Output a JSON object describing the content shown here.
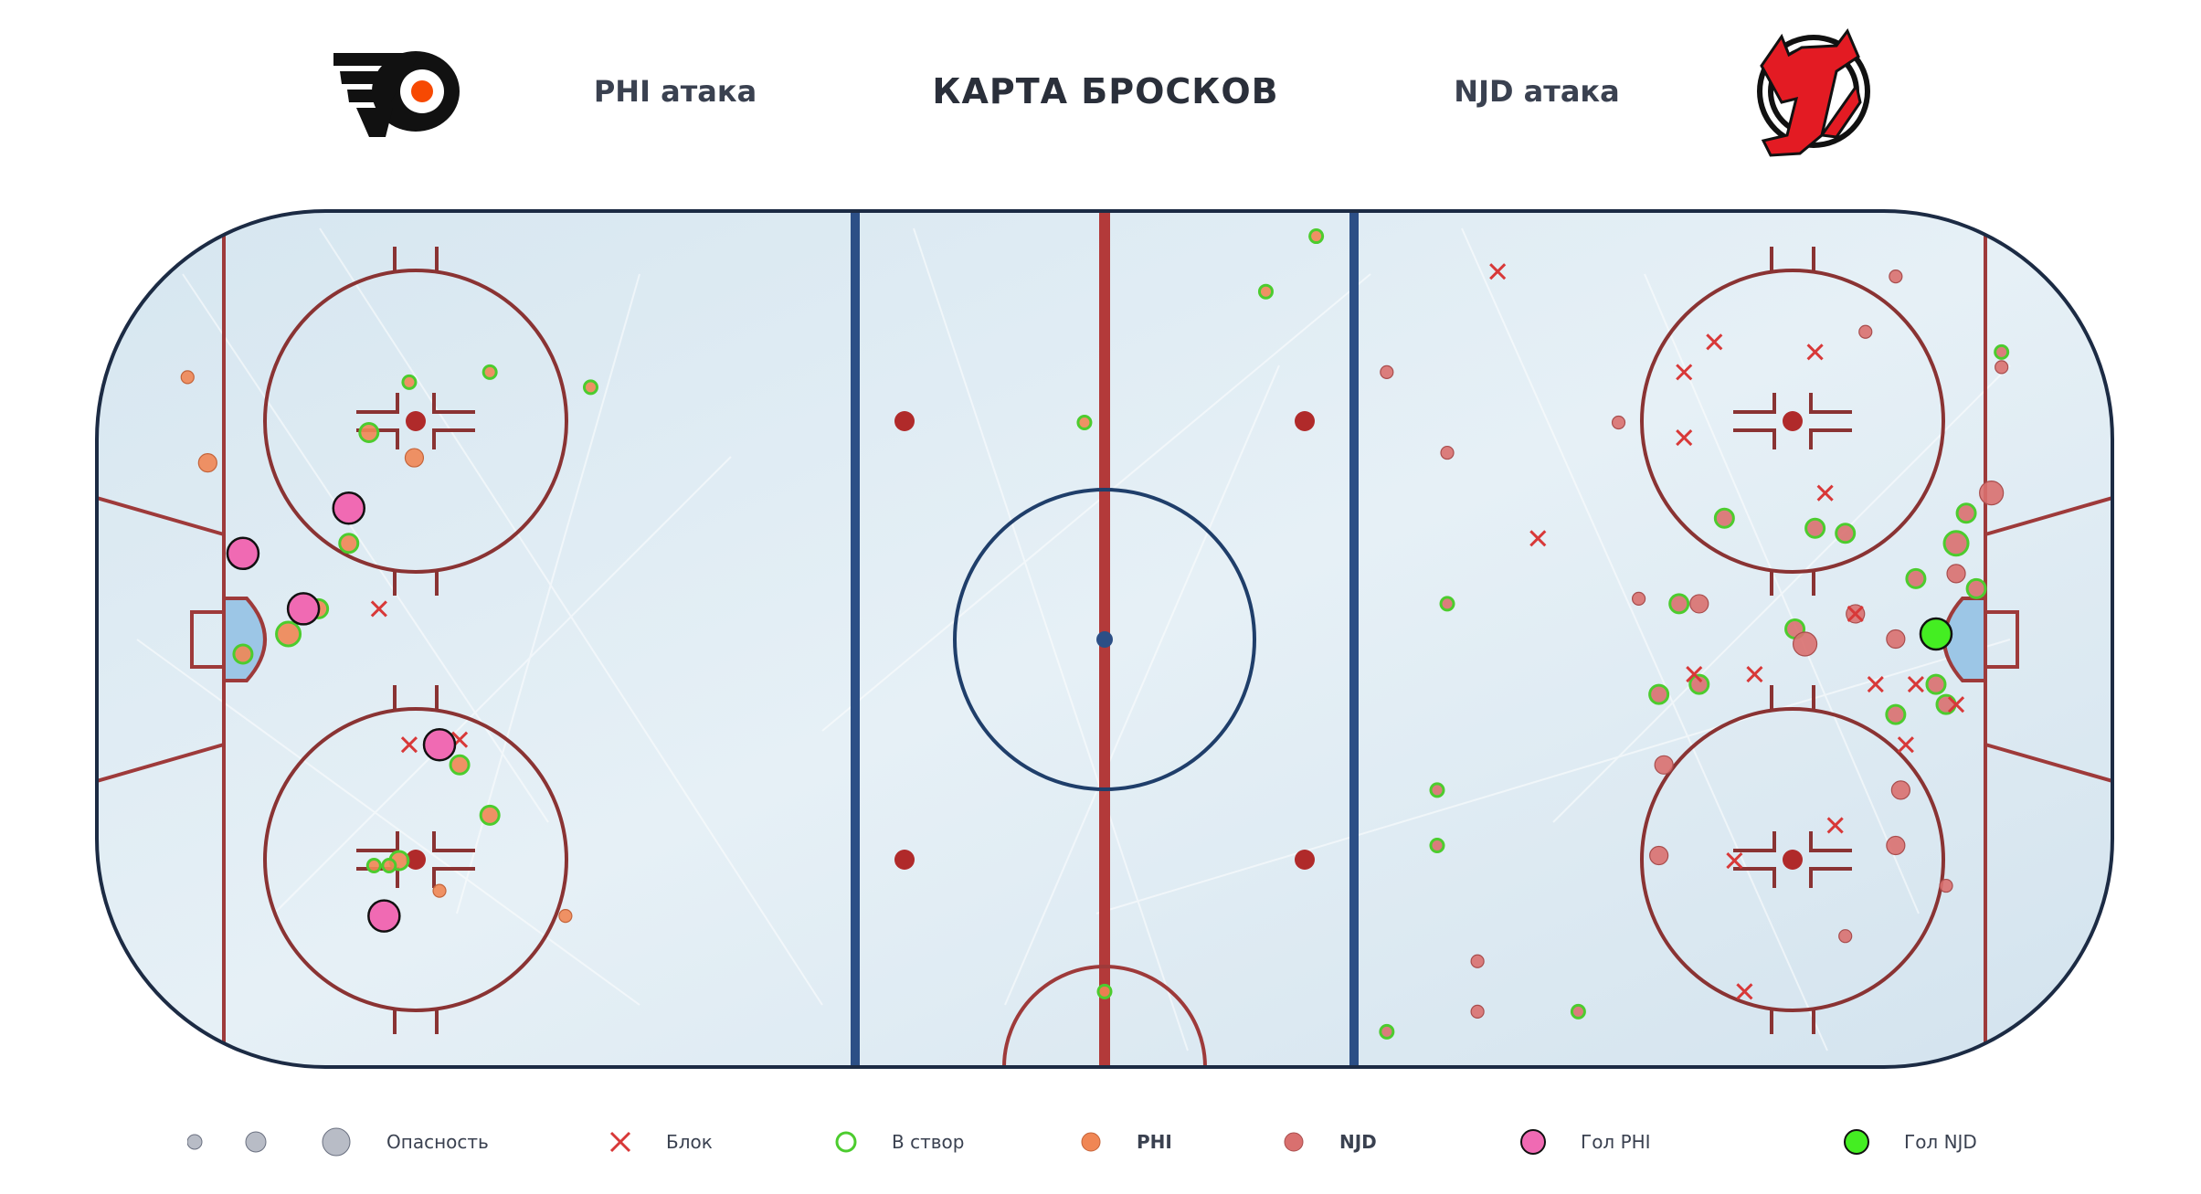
{
  "header": {
    "left_label": "PHI атака",
    "title": "КАРТА БРОСКОВ",
    "right_label": "NJD атака"
  },
  "colors": {
    "phi": "#f08654",
    "njd": "#d9706f",
    "on_target_ring": "#4ccc2e",
    "block": "#d83838",
    "goal_phi": "#f06ab3",
    "goal_njd": "#44ee22",
    "ice": "#dde9f1",
    "red_line": "#b33a3a",
    "blue_line": "#2c4f86",
    "board": "#1c2b44"
  },
  "chart_data": {
    "type": "scatter",
    "title": "КАРТА БРОСКОВ",
    "x_range": [
      -100,
      100
    ],
    "y_range": [
      -42.5,
      42.5
    ],
    "danger_levels": [
      1,
      2,
      3
    ],
    "series": [
      {
        "name": "PHI",
        "points": [
          {
            "x": -91,
            "y": 26,
            "d": 1,
            "r": "miss"
          },
          {
            "x": -89,
            "y": 17.5,
            "d": 2,
            "r": "miss"
          },
          {
            "x": -73,
            "y": 20.5,
            "d": 2,
            "r": "shot"
          },
          {
            "x": -68.5,
            "y": 18,
            "d": 2,
            "r": "miss"
          },
          {
            "x": -69,
            "y": 25.5,
            "d": 1,
            "r": "shot"
          },
          {
            "x": -51,
            "y": 25,
            "d": 1,
            "r": "shot"
          },
          {
            "x": -61,
            "y": 26.5,
            "d": 1,
            "r": "shot"
          },
          {
            "x": -75,
            "y": 9.5,
            "d": 2,
            "r": "shot"
          },
          {
            "x": -78,
            "y": 3,
            "d": 2,
            "r": "shot"
          },
          {
            "x": -81,
            "y": 0.5,
            "d": 3,
            "r": "shot"
          },
          {
            "x": -85.5,
            "y": -1.5,
            "d": 2,
            "r": "shot"
          },
          {
            "x": -64,
            "y": -12.5,
            "d": 2,
            "r": "shot"
          },
          {
            "x": -61,
            "y": -17.5,
            "d": 2,
            "r": "shot"
          },
          {
            "x": -70,
            "y": -22,
            "d": 2,
            "r": "shot"
          },
          {
            "x": -71,
            "y": -22.5,
            "d": 1,
            "r": "shot"
          },
          {
            "x": -72.5,
            "y": -22.5,
            "d": 1,
            "r": "shot"
          },
          {
            "x": -66,
            "y": -25,
            "d": 1,
            "r": "miss"
          },
          {
            "x": -53.5,
            "y": -27.5,
            "d": 1,
            "r": "miss"
          },
          {
            "x": -2,
            "y": 21.5,
            "d": 1,
            "r": "shot"
          },
          {
            "x": 16,
            "y": 34.5,
            "d": 1,
            "r": "shot"
          },
          {
            "x": 21,
            "y": 40,
            "d": 1,
            "r": "shot"
          },
          {
            "x": 0,
            "y": -35,
            "d": 1,
            "r": "shot"
          }
        ]
      },
      {
        "name": "NJD",
        "points": [
          {
            "x": 28,
            "y": 26.5,
            "d": 1,
            "r": "miss"
          },
          {
            "x": 34,
            "y": 18.5,
            "d": 1,
            "r": "miss"
          },
          {
            "x": 51,
            "y": 21.5,
            "d": 1,
            "r": "miss"
          },
          {
            "x": 78.5,
            "y": 36,
            "d": 1,
            "r": "miss"
          },
          {
            "x": 75.5,
            "y": 30.5,
            "d": 1,
            "r": "miss"
          },
          {
            "x": 89,
            "y": 28.5,
            "d": 1,
            "r": "shot"
          },
          {
            "x": 89,
            "y": 27,
            "d": 1,
            "r": "miss"
          },
          {
            "x": 88,
            "y": 14.5,
            "d": 3,
            "r": "miss"
          },
          {
            "x": 85.5,
            "y": 12.5,
            "d": 2,
            "r": "shot"
          },
          {
            "x": 84.5,
            "y": 9.5,
            "d": 3,
            "r": "shot"
          },
          {
            "x": 80.5,
            "y": 6,
            "d": 2,
            "r": "shot"
          },
          {
            "x": 84.5,
            "y": 6.5,
            "d": 2,
            "r": "miss"
          },
          {
            "x": 86.5,
            "y": 5,
            "d": 2,
            "r": "shot"
          },
          {
            "x": 74.5,
            "y": 2.5,
            "d": 2,
            "r": "miss"
          },
          {
            "x": 78.5,
            "y": 0,
            "d": 2,
            "r": "miss"
          },
          {
            "x": 68.5,
            "y": 1,
            "d": 2,
            "r": "shot"
          },
          {
            "x": 69.5,
            "y": -0.5,
            "d": 3,
            "r": "miss"
          },
          {
            "x": 61.5,
            "y": 12,
            "d": 2,
            "r": "shot"
          },
          {
            "x": 70.5,
            "y": 11,
            "d": 2,
            "r": "shot"
          },
          {
            "x": 73.5,
            "y": 10.5,
            "d": 2,
            "r": "shot"
          },
          {
            "x": 34,
            "y": 3.5,
            "d": 1,
            "r": "shot"
          },
          {
            "x": 53,
            "y": 4,
            "d": 1,
            "r": "miss"
          },
          {
            "x": 57,
            "y": 3.5,
            "d": 2,
            "r": "shot"
          },
          {
            "x": 59,
            "y": 3.5,
            "d": 2,
            "r": "miss"
          },
          {
            "x": 55,
            "y": -5.5,
            "d": 2,
            "r": "shot"
          },
          {
            "x": 59,
            "y": -4.5,
            "d": 2,
            "r": "shot"
          },
          {
            "x": 82.5,
            "y": -4.5,
            "d": 2,
            "r": "shot"
          },
          {
            "x": 78.5,
            "y": -7.5,
            "d": 2,
            "r": "shot"
          },
          {
            "x": 83.5,
            "y": -6.5,
            "d": 2,
            "r": "shot"
          },
          {
            "x": 55.5,
            "y": -12.5,
            "d": 2,
            "r": "miss"
          },
          {
            "x": 79,
            "y": -15,
            "d": 2,
            "r": "miss"
          },
          {
            "x": 33,
            "y": -15,
            "d": 1,
            "r": "shot"
          },
          {
            "x": 33,
            "y": -20.5,
            "d": 1,
            "r": "shot"
          },
          {
            "x": 55,
            "y": -21.5,
            "d": 2,
            "r": "miss"
          },
          {
            "x": 78.5,
            "y": -20.5,
            "d": 2,
            "r": "miss"
          },
          {
            "x": 83.5,
            "y": -24.5,
            "d": 1,
            "r": "miss"
          },
          {
            "x": 73.5,
            "y": -29.5,
            "d": 1,
            "r": "miss"
          },
          {
            "x": 37,
            "y": -32,
            "d": 1,
            "r": "miss"
          },
          {
            "x": 37,
            "y": -37,
            "d": 1,
            "r": "miss"
          },
          {
            "x": 47,
            "y": -37,
            "d": 1,
            "r": "shot"
          },
          {
            "x": 28,
            "y": -39,
            "d": 1,
            "r": "shot"
          }
        ]
      },
      {
        "name": "Блок",
        "points": [
          {
            "x": -72,
            "y": 3,
            "t": "PHI"
          },
          {
            "x": -69,
            "y": -10.5,
            "t": "PHI"
          },
          {
            "x": -64,
            "y": -10,
            "t": "PHI"
          },
          {
            "x": 39,
            "y": 36.5,
            "t": "NJD"
          },
          {
            "x": 60.5,
            "y": 29.5,
            "t": "NJD"
          },
          {
            "x": 57.5,
            "y": 26.5,
            "t": "NJD"
          },
          {
            "x": 70.5,
            "y": 28.5,
            "t": "NJD"
          },
          {
            "x": 57.5,
            "y": 20,
            "t": "NJD"
          },
          {
            "x": 43,
            "y": 10,
            "t": "NJD"
          },
          {
            "x": 71.5,
            "y": 14.5,
            "t": "NJD"
          },
          {
            "x": 74.5,
            "y": 2.5,
            "t": "NJD"
          },
          {
            "x": 58.5,
            "y": -3.5,
            "t": "NJD"
          },
          {
            "x": 64.5,
            "y": -3.5,
            "t": "NJD"
          },
          {
            "x": 76.5,
            "y": -4.5,
            "t": "NJD"
          },
          {
            "x": 80.5,
            "y": -4.5,
            "t": "NJD"
          },
          {
            "x": 84.5,
            "y": -6.5,
            "t": "NJD"
          },
          {
            "x": 79.5,
            "y": -10.5,
            "t": "NJD"
          },
          {
            "x": 72.5,
            "y": -18.5,
            "t": "NJD"
          },
          {
            "x": 62.5,
            "y": -22,
            "t": "NJD"
          },
          {
            "x": 63.5,
            "y": -35,
            "t": "NJD"
          }
        ]
      },
      {
        "name": "Гол PHI",
        "points": [
          {
            "x": -75,
            "y": 13,
            "d": 3
          },
          {
            "x": -85.5,
            "y": 8.5,
            "d": 3
          },
          {
            "x": -79.5,
            "y": 3,
            "d": 3
          },
          {
            "x": -66,
            "y": -10.5,
            "d": 3
          },
          {
            "x": -71.5,
            "y": -27.5,
            "d": 3
          }
        ]
      },
      {
        "name": "Гол NJD",
        "points": [
          {
            "x": 82.5,
            "y": 0.5,
            "d": 3
          }
        ]
      }
    ],
    "legend": {
      "danger_label": "Опасность",
      "block_label": "Блок",
      "on_target_label": "В створ",
      "phi_label": "PHI",
      "njd_label": "NJD",
      "goal_phi_label": "Гол PHI",
      "goal_njd_label": "Гол NJD"
    }
  }
}
